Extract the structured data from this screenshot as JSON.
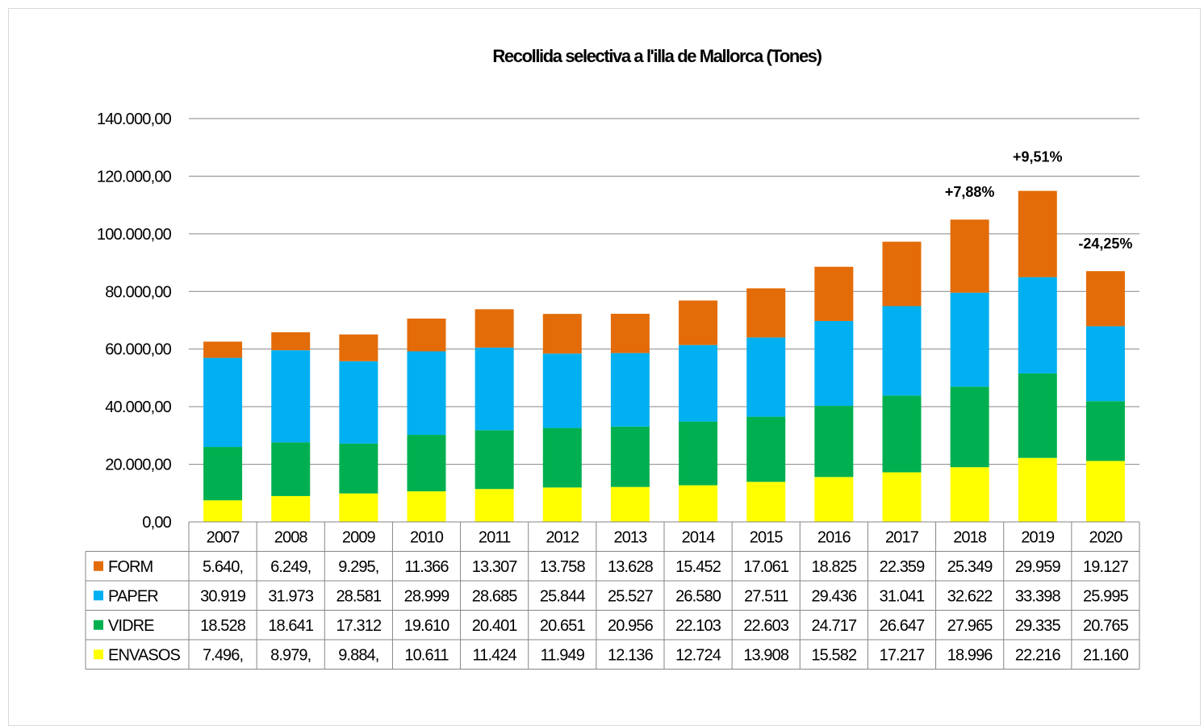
{
  "chart_data": {
    "type": "bar",
    "stacked": true,
    "title": "Recollida selectiva a l'illa de  Mallorca (Tones)",
    "xlabel": "",
    "ylabel": "",
    "ylim": [
      0,
      140000
    ],
    "y_ticks": [
      "0,00",
      "20.000,00",
      "40.000,00",
      "60.000,00",
      "80.000,00",
      "100.000,00",
      "120.000,00",
      "140.000,00"
    ],
    "grid": true,
    "legend": "data-table",
    "categories": [
      "2007",
      "2008",
      "2009",
      "2010",
      "2011",
      "2012",
      "2013",
      "2014",
      "2015",
      "2016",
      "2017",
      "2018",
      "2019",
      "2020"
    ],
    "series": [
      {
        "name": "ENVASOS",
        "color": "#ffff00",
        "values": [
          7496,
          8979,
          9884,
          10611,
          11424,
          11949,
          12136,
          12724,
          13908,
          15582,
          17217,
          18996,
          22216,
          21160
        ],
        "labels": [
          "7.496,",
          "8.979,",
          "9.884,",
          "10.611",
          "11.424",
          "11.949",
          "12.136",
          "12.724",
          "13.908",
          "15.582",
          "17.217",
          "18.996",
          "22.216",
          "21.160"
        ]
      },
      {
        "name": "VIDRE",
        "color": "#00b050",
        "values": [
          18528,
          18641,
          17312,
          19610,
          20401,
          20651,
          20956,
          22103,
          22603,
          24717,
          26647,
          27965,
          29335,
          20765
        ],
        "labels": [
          "18.528",
          "18.641",
          "17.312",
          "19.610",
          "20.401",
          "20.651",
          "20.956",
          "22.103",
          "22.603",
          "24.717",
          "26.647",
          "27.965",
          "29.335",
          "20.765"
        ]
      },
      {
        "name": "PAPER",
        "color": "#00b0f0",
        "values": [
          30919,
          31973,
          28581,
          28999,
          28685,
          25844,
          25527,
          26580,
          27511,
          29436,
          31041,
          32622,
          33398,
          25995
        ],
        "labels": [
          "30.919",
          "31.973",
          "28.581",
          "28.999",
          "28.685",
          "25.844",
          "25.527",
          "26.580",
          "27.511",
          "29.436",
          "31.041",
          "32.622",
          "33.398",
          "25.995"
        ]
      },
      {
        "name": "FORM",
        "color": "#e36c09",
        "values": [
          5640,
          6249,
          9295,
          11366,
          13307,
          13758,
          13628,
          15452,
          17061,
          18825,
          22359,
          25349,
          29959,
          19127
        ],
        "labels": [
          "5.640,",
          "6.249,",
          "9.295,",
          "11.366",
          "13.307",
          "13.758",
          "13.628",
          "15.452",
          "17.061",
          "18.825",
          "22.359",
          "25.349",
          "29.959",
          "19.127"
        ]
      }
    ],
    "table_row_order": [
      "FORM",
      "PAPER",
      "VIDRE",
      "ENVASOS"
    ],
    "annotations": [
      {
        "category": "2018",
        "text": "+7,88%"
      },
      {
        "category": "2019",
        "text": "+9,51%"
      },
      {
        "category": "2020",
        "text": "-24,25%"
      }
    ]
  }
}
